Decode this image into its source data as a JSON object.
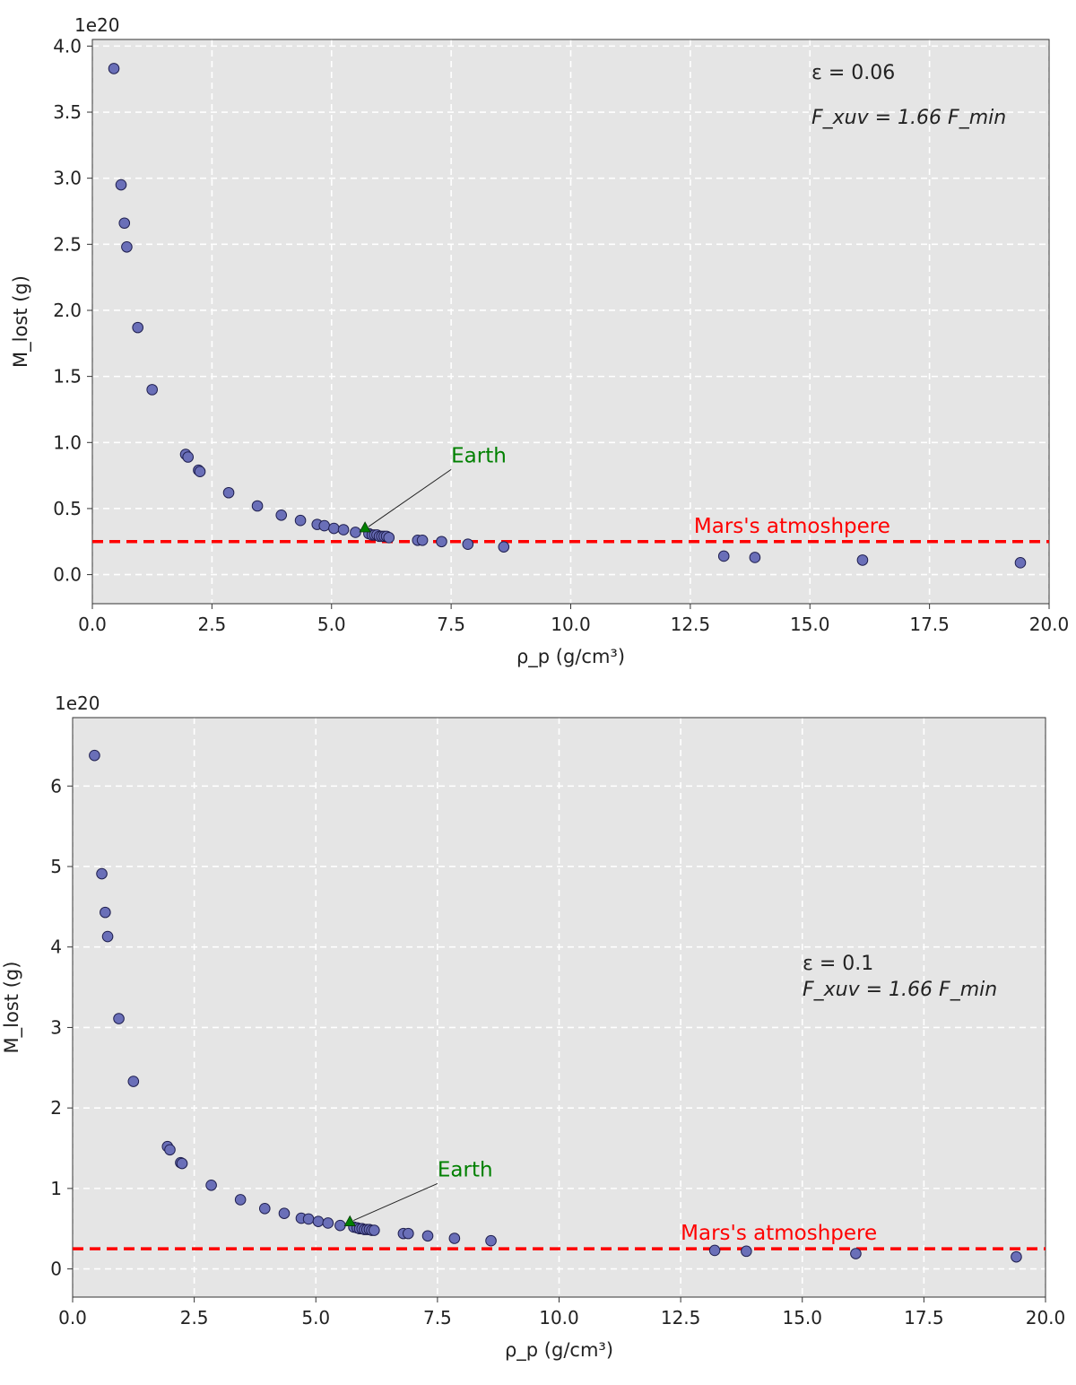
{
  "chart_data": [
    {
      "type": "scatter",
      "title": "",
      "xlabel": "ρ_p (g/cm³)",
      "ylabel": "M_lost (g)",
      "offset_text": "1e20",
      "xlim": [
        0,
        20
      ],
      "ylim": [
        -0.22,
        4.05
      ],
      "xticks": [
        "0.0",
        "2.5",
        "5.0",
        "7.5",
        "10.0",
        "12.5",
        "15.0",
        "17.5",
        "20.0"
      ],
      "yticks": [
        "0.0",
        "0.5",
        "1.0",
        "1.5",
        "2.0",
        "2.5",
        "3.0",
        "3.5",
        "4.0"
      ],
      "grid": true,
      "annotation_lines": [
        "ε = 0.06",
        "F_xuv = 1.66 F_min"
      ],
      "series": [
        {
          "name": "planets",
          "color": "#6a6fb8",
          "x": [
            0.45,
            0.6,
            0.67,
            0.72,
            0.95,
            1.25,
            1.95,
            2.0,
            2.22,
            2.25,
            2.85,
            3.45,
            3.95,
            4.35,
            4.7,
            4.85,
            5.05,
            5.25,
            5.5,
            5.78,
            5.85,
            5.9,
            5.95,
            6.0,
            6.05,
            6.1,
            6.15,
            6.2,
            6.8,
            6.9,
            7.3,
            7.85,
            8.6,
            13.2,
            13.85,
            16.1,
            19.4
          ],
          "y": [
            3.83,
            2.95,
            2.66,
            2.48,
            1.87,
            1.4,
            0.91,
            0.89,
            0.79,
            0.78,
            0.62,
            0.52,
            0.45,
            0.41,
            0.38,
            0.37,
            0.35,
            0.34,
            0.32,
            0.31,
            0.3,
            0.3,
            0.3,
            0.29,
            0.29,
            0.29,
            0.29,
            0.28,
            0.26,
            0.26,
            0.25,
            0.23,
            0.21,
            0.14,
            0.13,
            0.11,
            0.09
          ]
        }
      ],
      "earth": {
        "label": "Earth",
        "x": 5.7,
        "y": 0.35,
        "label_x": 7.5,
        "label_y": 0.85,
        "color": "#008000"
      },
      "reference_line": {
        "label": "Mars's atmoshpere",
        "y": 0.25,
        "label_x": 12.5,
        "color": "#ff0000"
      }
    },
    {
      "type": "scatter",
      "title": "",
      "xlabel": "ρ_p (g/cm³)",
      "ylabel": "M_lost (g)",
      "offset_text": "1e20",
      "xlim": [
        0,
        20
      ],
      "ylim": [
        -0.35,
        6.85
      ],
      "xticks": [
        "0.0",
        "2.5",
        "5.0",
        "7.5",
        "10.0",
        "12.5",
        "15.0",
        "17.5",
        "20.0"
      ],
      "yticks": [
        "0",
        "1",
        "2",
        "3",
        "4",
        "5",
        "6"
      ],
      "grid": true,
      "annotation_lines": [
        "ε = 0.1",
        "F_xuv = 1.66 F_min"
      ],
      "series": [
        {
          "name": "planets",
          "color": "#6a6fb8",
          "x": [
            0.45,
            0.6,
            0.67,
            0.72,
            0.95,
            1.25,
            1.95,
            2.0,
            2.22,
            2.25,
            2.85,
            3.45,
            3.95,
            4.35,
            4.7,
            4.85,
            5.05,
            5.25,
            5.5,
            5.78,
            5.85,
            5.9,
            5.95,
            6.0,
            6.05,
            6.1,
            6.15,
            6.2,
            6.8,
            6.9,
            7.3,
            7.85,
            8.6,
            13.2,
            13.85,
            16.1,
            19.4
          ],
          "y": [
            6.38,
            4.91,
            4.43,
            4.13,
            3.11,
            2.33,
            1.52,
            1.48,
            1.32,
            1.31,
            1.04,
            0.86,
            0.75,
            0.69,
            0.63,
            0.62,
            0.59,
            0.57,
            0.54,
            0.52,
            0.51,
            0.5,
            0.5,
            0.49,
            0.49,
            0.49,
            0.48,
            0.48,
            0.44,
            0.44,
            0.41,
            0.38,
            0.35,
            0.23,
            0.22,
            0.19,
            0.15
          ]
        }
      ],
      "earth": {
        "label": "Earth",
        "x": 5.7,
        "y": 0.58,
        "label_x": 7.5,
        "label_y": 1.15,
        "color": "#008000"
      },
      "reference_line": {
        "label": "Mars's atmoshpere",
        "y": 0.25,
        "label_x": 12.5,
        "color": "#ff0000"
      }
    }
  ]
}
